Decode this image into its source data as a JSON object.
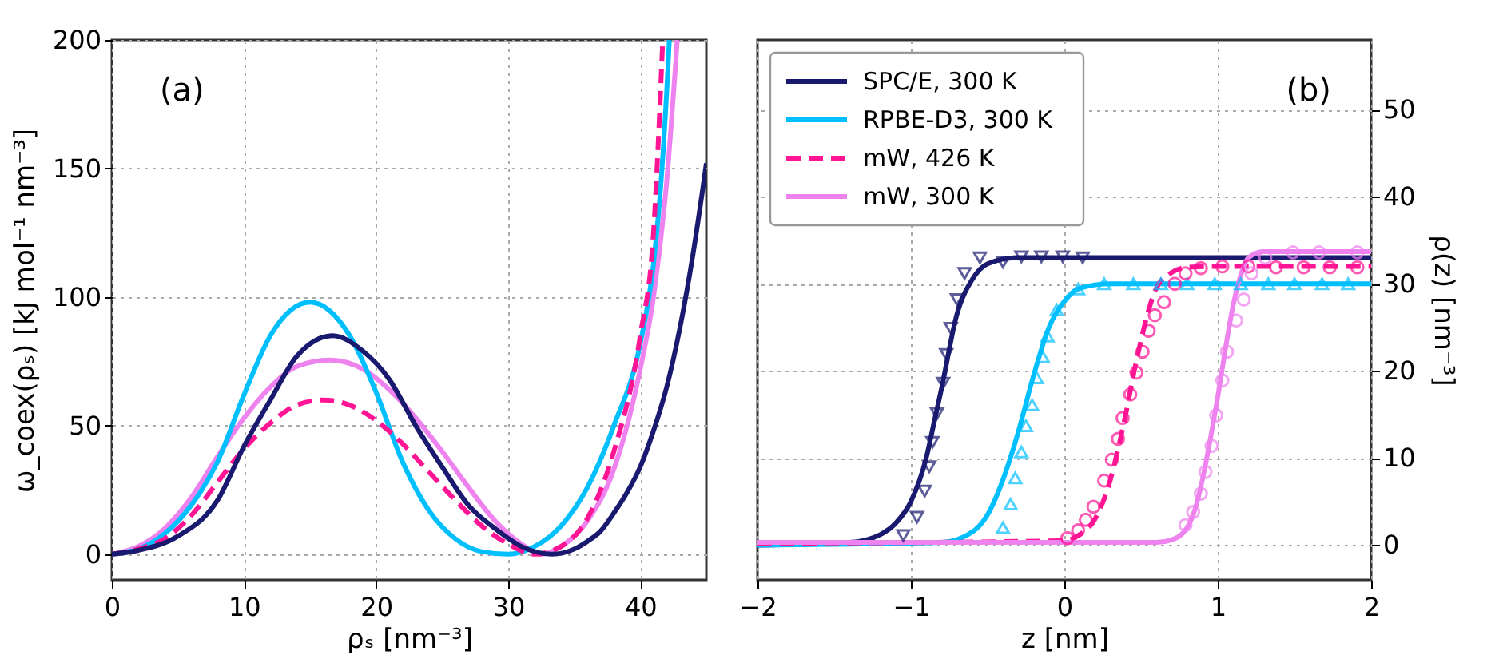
{
  "chart_data": [
    {
      "type": "line",
      "annotations": [
        "(a)"
      ],
      "xlabel": "ρₛ [nm⁻³]",
      "ylabel": "ω_coex(ρₛ) [kJ mol⁻¹ nm⁻³]",
      "xlim": [
        0,
        45
      ],
      "ylim": [
        -10,
        200
      ],
      "xticks": [
        0,
        10,
        20,
        30,
        40
      ],
      "yticks": [
        0,
        50,
        100,
        150,
        200
      ],
      "grid": true,
      "legend": false,
      "series": [
        {
          "color": "#ee82ee",
          "x": [
            0,
            2,
            4,
            6,
            8,
            10,
            12,
            14,
            16.5,
            19,
            21,
            23,
            25,
            27,
            29,
            31,
            32.5,
            34,
            36,
            38,
            40,
            41,
            42,
            42.8
          ],
          "values": [
            0,
            3,
            10,
            22,
            38,
            53,
            65,
            73,
            75.5,
            72,
            64,
            53,
            40,
            26,
            13,
            4,
            0,
            3,
            13,
            33,
            72,
            100,
            145,
            200
          ]
        },
        {
          "color": "#00bfff",
          "x": [
            0,
            2,
            4,
            6,
            8,
            10,
            12,
            15,
            18,
            20,
            22,
            24,
            26,
            28,
            30,
            32,
            34,
            36,
            38,
            40,
            41,
            41.5,
            42,
            42.2
          ],
          "values": [
            0,
            2,
            8,
            19,
            36,
            62,
            85,
            98,
            85,
            63,
            36,
            17,
            6,
            1,
            0,
            3,
            11,
            26,
            50,
            82,
            113,
            140,
            180,
            200
          ]
        },
        {
          "color": "#ff1493",
          "line_style": "dashed",
          "x": [
            0,
            2,
            4,
            6,
            8,
            10,
            12,
            14,
            16,
            18,
            20,
            22,
            24,
            26,
            28,
            30,
            32,
            34,
            36,
            38,
            40,
            41,
            41.7
          ],
          "values": [
            0,
            2,
            6,
            15,
            28,
            41,
            51,
            58,
            60,
            58,
            52,
            43,
            32,
            21,
            11,
            4,
            0,
            3,
            14,
            40,
            85,
            125,
            200
          ]
        },
        {
          "color": "#191970",
          "x": [
            0,
            2,
            5,
            8,
            10,
            12,
            14,
            16.7,
            19,
            21,
            23,
            25,
            27,
            29,
            31,
            33.3,
            35,
            36,
            37,
            38,
            39,
            40,
            41,
            42,
            43,
            44,
            45
          ],
          "values": [
            0,
            1.5,
            7,
            21,
            42,
            60,
            77,
            85,
            79,
            68,
            50,
            34,
            19,
            10,
            3,
            0,
            2,
            5,
            9,
            16,
            24,
            34,
            48,
            65,
            88,
            117,
            152
          ]
        }
      ]
    },
    {
      "type": "line",
      "annotations": [
        "(b)"
      ],
      "xlabel": "z [nm]",
      "y2label": "ρ(z) [nm⁻³]",
      "xlim": [
        -2,
        2
      ],
      "y2lim": [
        -4,
        58
      ],
      "xticks": [
        -2,
        -1,
        0,
        1,
        2
      ],
      "y2ticks": [
        0,
        10,
        20,
        30,
        40,
        50
      ],
      "grid": true,
      "legend": "top left",
      "series": [
        {
          "name": "SPC/E, 300 K",
          "color": "#191970",
          "axis": "y2",
          "x": [
            -2,
            -1.4,
            -1.2,
            -1.1,
            -1.0,
            -0.9,
            -0.85,
            -0.8,
            -0.7,
            -0.6,
            -0.5,
            -0.3,
            2
          ],
          "values": [
            0,
            0.3,
            1.2,
            2.5,
            5,
            10,
            14,
            18,
            26.5,
            30.5,
            32.3,
            33,
            33
          ]
        },
        {
          "name": "RPBE-D3, 300 K",
          "color": "#00bfff",
          "axis": "y2",
          "x": [
            -2,
            -0.8,
            -0.6,
            -0.5,
            -0.4,
            -0.3,
            -0.2,
            -0.1,
            0,
            0.1,
            0.3,
            2
          ],
          "values": [
            0,
            0.3,
            1.5,
            3.5,
            7.5,
            13,
            19.5,
            25,
            28,
            29.5,
            30,
            30
          ]
        },
        {
          "name": "mW, 426 K",
          "color": "#ff1493",
          "axis": "y2",
          "line_style": "dashed",
          "x": [
            -2,
            0,
            0.1,
            0.2,
            0.3,
            0.35,
            0.4,
            0.45,
            0.5,
            0.55,
            0.6,
            0.7,
            0.8,
            1,
            2
          ],
          "values": [
            0.2,
            0.5,
            1.2,
            3,
            7.5,
            11,
            15,
            19.5,
            23.5,
            27,
            29.5,
            31.3,
            31.9,
            32,
            32
          ]
        },
        {
          "name": "mW, 300 K",
          "color": "#ee82ee",
          "axis": "y2",
          "x": [
            -2,
            0.6,
            0.7,
            0.8,
            0.85,
            0.9,
            0.95,
            1.0,
            1.05,
            1.1,
            1.15,
            1.2,
            1.3,
            2
          ],
          "values": [
            0.3,
            0.3,
            0.6,
            2,
            4,
            7.5,
            12,
            17,
            22.5,
            27.5,
            31,
            33,
            33.7,
            33.7
          ]
        },
        {
          "type": "scatter",
          "marker": "triangle-down",
          "color": "#191970",
          "axis": "y2",
          "x": [
            -1.05,
            -0.96,
            -0.91,
            -0.88,
            -0.86,
            -0.83,
            -0.79,
            -0.77,
            -0.74,
            -0.7,
            -0.65,
            -0.55,
            -0.4,
            -0.28,
            -0.15,
            -0.01,
            0.12
          ],
          "values": [
            1.1,
            3.2,
            6.2,
            9.0,
            11.8,
            15.1,
            18.6,
            21.9,
            24.9,
            28.2,
            31.2,
            33.0,
            32.5,
            33.1,
            33.1,
            33.1,
            33.0
          ]
        },
        {
          "type": "scatter",
          "marker": "triangle",
          "color": "#00bfff",
          "axis": "y2",
          "x": [
            -0.4,
            -0.35,
            -0.32,
            -0.28,
            -0.25,
            -0.21,
            -0.18,
            -0.14,
            -0.11,
            -0.05,
            0.09,
            0.26,
            0.45,
            0.63,
            0.8,
            0.98,
            1.15,
            1.33,
            1.5,
            1.68,
            1.85
          ],
          "values": [
            2.0,
            4.7,
            7.7,
            10.7,
            13.7,
            16.1,
            19.2,
            21.6,
            24.0,
            27.0,
            29.4,
            30.0,
            30.0,
            30.0,
            30.0,
            30.0,
            30.0,
            30.0,
            30.0,
            30.0,
            30.0
          ]
        },
        {
          "type": "scatter",
          "marker": "circle",
          "color": "#ff1493",
          "axis": "y2",
          "x": [
            0.02,
            0.09,
            0.14,
            0.19,
            0.26,
            0.31,
            0.35,
            0.38,
            0.43,
            0.47,
            0.51,
            0.55,
            0.59,
            0.65,
            0.72,
            0.79,
            0.89,
            1.03,
            1.2,
            1.38,
            1.56,
            1.73,
            1.91
          ],
          "values": [
            0.8,
            1.7,
            2.9,
            4.4,
            7.4,
            9.8,
            12.2,
            14.6,
            17.3,
            19.8,
            22.2,
            24.6,
            26.4,
            27.9,
            30,
            31.2,
            31.8,
            32,
            32,
            31.9,
            31.9,
            31.9,
            31.9
          ]
        },
        {
          "type": "scatter",
          "marker": "circle",
          "color": "#ee82ee",
          "axis": "y2",
          "x": [
            0.79,
            0.84,
            0.89,
            0.92,
            0.96,
            0.99,
            1.03,
            1.06,
            1.12,
            1.17,
            1.22,
            1.31,
            1.49,
            1.66,
            1.91
          ],
          "values": [
            2.3,
            3.8,
            5.9,
            8.4,
            11.4,
            14.9,
            18.9,
            22.2,
            25.8,
            28.2,
            31.2,
            33,
            33.6,
            33.6,
            33.6
          ]
        }
      ]
    }
  ]
}
